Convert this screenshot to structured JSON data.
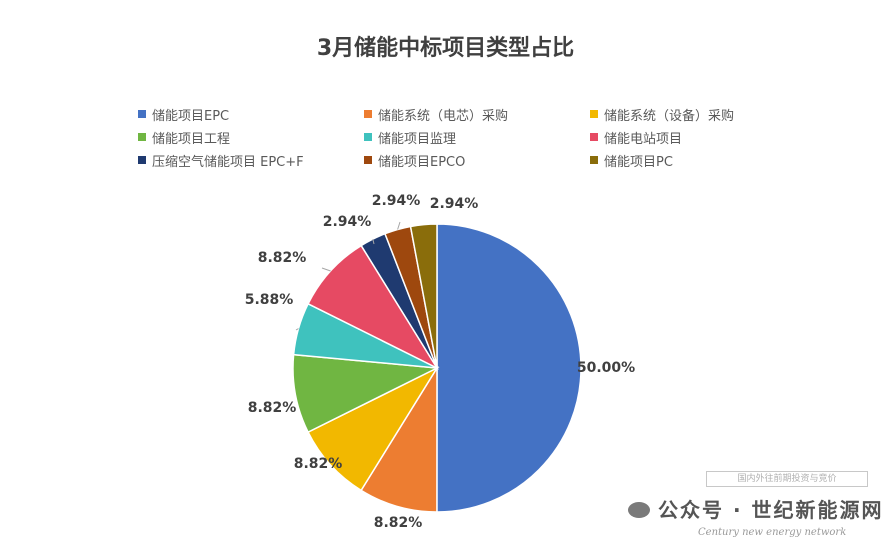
{
  "chart_data": {
    "type": "pie",
    "title": "3月储能中标项目类型占比",
    "categories": [
      "储能项目EPC",
      "储能系统（电芯）采购",
      "储能系统（设备）采购",
      "储能项目工程",
      "储能项目监理",
      "储能电站项目",
      "压缩空气储能项目 EPC+F",
      "储能项目EPCO",
      "储能项目PC"
    ],
    "values": [
      50.0,
      8.82,
      8.82,
      8.82,
      5.88,
      8.82,
      2.94,
      2.94,
      2.94
    ],
    "data_labels": [
      "50.00%",
      "8.82%",
      "8.82%",
      "8.82%",
      "5.88%",
      "8.82%",
      "2.94%",
      "2.94%",
      "2.94%"
    ],
    "colors": [
      "#4472C4",
      "#ED7D31",
      "#F2B800",
      "#70B642",
      "#3FC2BE",
      "#E64A63",
      "#1F3A70",
      "#9E480E",
      "#8A6D0B"
    ],
    "legend_position": "top"
  },
  "watermark": {
    "line1": "国内外往前期投资与竞价",
    "line2": "公众号 · 世纪新能源网",
    "line3": "Century new energy network"
  }
}
